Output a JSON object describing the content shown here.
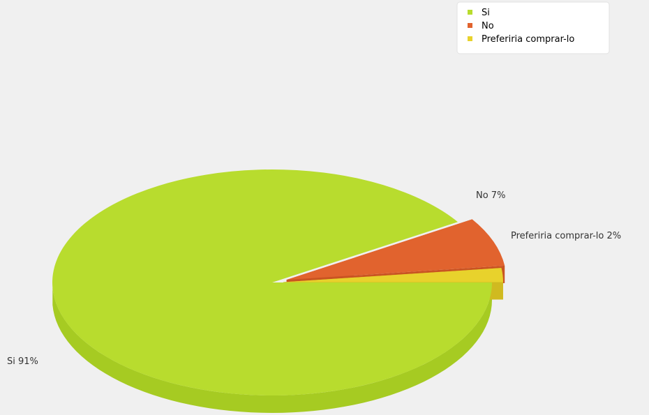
{
  "chart_data": {
    "type": "pie",
    "style": "3d-exploded",
    "legend_position": "top-right",
    "slices": [
      {
        "label": "Si",
        "value": 91,
        "value_label": "91%",
        "color": "#b8dc2e",
        "side_color": "#a6cb22",
        "label_text": "Si  91%"
      },
      {
        "label": "No",
        "value": 7,
        "value_label": "7%",
        "color": "#e1632e",
        "side_color": "#c95422",
        "label_text": "No  7%"
      },
      {
        "label": "Preferiria comprar-lo",
        "value": 2,
        "value_label": "2%",
        "color": "#e8d22c",
        "side_color": "#d0ba20",
        "label_text": "Preferiria comprar-lo  2%"
      }
    ]
  }
}
